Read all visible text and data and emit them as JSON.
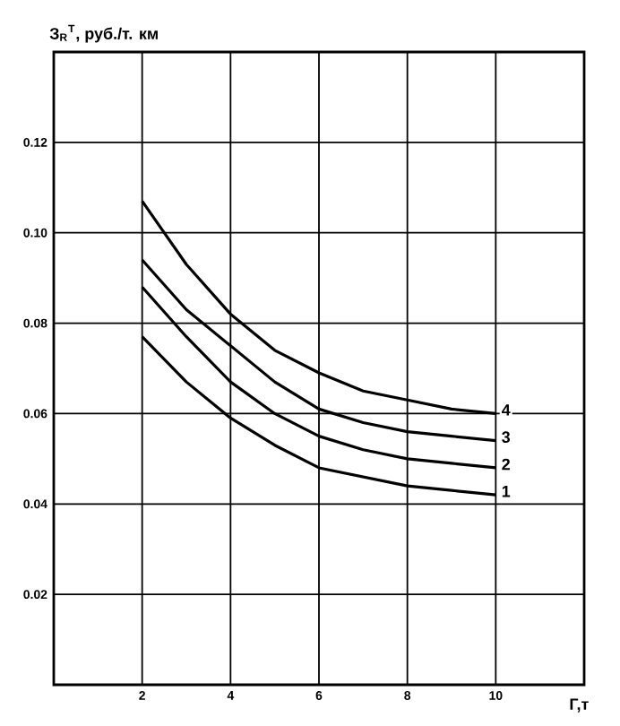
{
  "chart_data": {
    "type": "line",
    "xlabel": "Г,т",
    "ylabel": "З$_{R}$$^{T}$, руб./т. км",
    "x": [
      2,
      3,
      4,
      5,
      6,
      7,
      8,
      9,
      10
    ],
    "series": [
      {
        "name": "1",
        "color": "#000000",
        "values": [
          0.077,
          0.067,
          0.059,
          0.053,
          0.048,
          0.046,
          0.044,
          0.043,
          0.042
        ]
      },
      {
        "name": "2",
        "color": "#000000",
        "values": [
          0.088,
          0.077,
          0.067,
          0.06,
          0.055,
          0.052,
          0.05,
          0.049,
          0.048
        ]
      },
      {
        "name": "3",
        "color": "#000000",
        "values": [
          0.094,
          0.083,
          0.075,
          0.067,
          0.061,
          0.058,
          0.056,
          0.055,
          0.054
        ]
      },
      {
        "name": "4",
        "color": "#000000",
        "values": [
          0.107,
          0.093,
          0.082,
          0.074,
          0.069,
          0.065,
          0.063,
          0.061,
          0.06
        ]
      }
    ],
    "xlim": [
      0,
      12
    ],
    "ylim": [
      0,
      0.14
    ],
    "xticks": [
      2,
      4,
      6,
      8,
      10
    ],
    "yticks": [
      0.02,
      0.04,
      0.06,
      0.08,
      {
        "value": 0.1,
        "label": "0.10"
      },
      0.12
    ],
    "grid": true,
    "legend": false,
    "marker": "none",
    "line_style": "solid"
  }
}
